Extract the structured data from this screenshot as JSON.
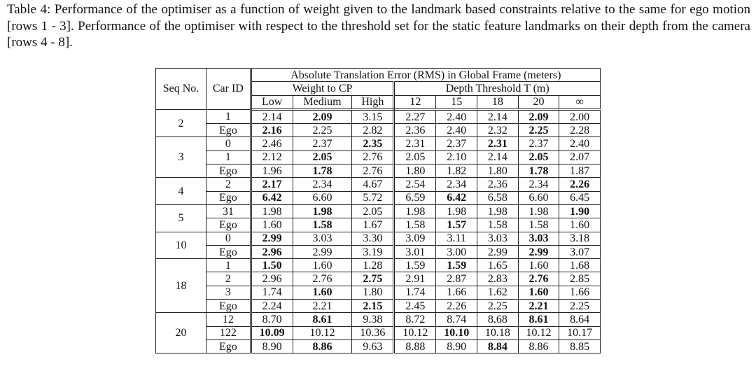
{
  "caption": "Table 4: Performance of the optimiser as a function of weight given to the landmark based constraints relative to the same for ego motion [rows 1 - 3]. Performance of the optimiser with respect to the threshold set for the static feature landmarks on their depth from the camera [rows 4 - 8].",
  "table": {
    "header": {
      "seq": "Seq No.",
      "car": "Car ID",
      "group": "Absolute Translation Error (RMS) in Global Frame (meters)",
      "weight": "Weight to CP",
      "depth": "Depth Threshold T (m)",
      "weight_cols": [
        "Low",
        "Medium",
        "High"
      ],
      "depth_cols": [
        "12",
        "15",
        "18",
        "20",
        "∞"
      ]
    },
    "groups": [
      {
        "seq": "2",
        "rows": [
          {
            "car": "1",
            "values": [
              "2.14",
              "2.09",
              "3.15",
              "2.27",
              "2.40",
              "2.14",
              "2.09",
              "2.00"
            ],
            "bold": [
              1,
              6
            ]
          },
          {
            "car": "Ego",
            "values": [
              "2.16",
              "2.25",
              "2.82",
              "2.36",
              "2.40",
              "2.32",
              "2.25",
              "2.28"
            ],
            "bold": [
              0,
              6
            ]
          }
        ]
      },
      {
        "seq": "3",
        "rows": [
          {
            "car": "0",
            "values": [
              "2.46",
              "2.37",
              "2.35",
              "2.31",
              "2.37",
              "2.31",
              "2.37",
              "2.40"
            ],
            "bold": [
              2,
              5
            ]
          },
          {
            "car": "1",
            "values": [
              "2.12",
              "2.05",
              "2.76",
              "2.05",
              "2.10",
              "2.14",
              "2.05",
              "2.07"
            ],
            "bold": [
              1,
              6
            ]
          },
          {
            "car": "Ego",
            "values": [
              "1.96",
              "1.78",
              "2.76",
              "1.80",
              "1.82",
              "1.80",
              "1.78",
              "1.87"
            ],
            "bold": [
              1,
              6
            ]
          }
        ]
      },
      {
        "seq": "4",
        "rows": [
          {
            "car": "2",
            "values": [
              "2.17",
              "2.34",
              "4.67",
              "2.54",
              "2.34",
              "2.36",
              "2.34",
              "2.26"
            ],
            "bold": [
              0,
              7
            ]
          },
          {
            "car": "Ego",
            "values": [
              "6.42",
              "6.60",
              "5.72",
              "6.59",
              "6.42",
              "6.58",
              "6.60",
              "6.45"
            ],
            "bold": [
              0,
              4
            ]
          }
        ]
      },
      {
        "seq": "5",
        "rows": [
          {
            "car": "31",
            "values": [
              "1.98",
              "1.98",
              "2.05",
              "1.98",
              "1.98",
              "1.98",
              "1.98",
              "1.90"
            ],
            "bold": [
              1,
              7
            ]
          },
          {
            "car": "Ego",
            "values": [
              "1.60",
              "1.58",
              "1.67",
              "1.58",
              "1.57",
              "1.58",
              "1.58",
              "1.60"
            ],
            "bold": [
              1,
              4
            ]
          }
        ]
      },
      {
        "seq": "10",
        "rows": [
          {
            "car": "0",
            "values": [
              "2.99",
              "3.03",
              "3.30",
              "3.09",
              "3.11",
              "3.03",
              "3.03",
              "3.18"
            ],
            "bold": [
              0,
              6
            ]
          },
          {
            "car": "Ego",
            "values": [
              "2.96",
              "2.99",
              "3.19",
              "3.01",
              "3.00",
              "2.99",
              "2.99",
              "3.07"
            ],
            "bold": [
              0,
              6
            ]
          }
        ]
      },
      {
        "seq": "18",
        "rows": [
          {
            "car": "1",
            "values": [
              "1.50",
              "1.60",
              "1.28",
              "1.59",
              "1.59",
              "1.65",
              "1.60",
              "1.68"
            ],
            "bold": [
              0,
              4
            ]
          },
          {
            "car": "2",
            "values": [
              "2.96",
              "2.76",
              "2.75",
              "2.91",
              "2.87",
              "2.83",
              "2.76",
              "2.85"
            ],
            "bold": [
              2,
              6
            ]
          },
          {
            "car": "3",
            "values": [
              "1.74",
              "1.60",
              "1.80",
              "1.74",
              "1.66",
              "1.62",
              "1.60",
              "1.66"
            ],
            "bold": [
              1,
              6
            ]
          },
          {
            "car": "Ego",
            "values": [
              "2.24",
              "2.21",
              "2.15",
              "2.45",
              "2.26",
              "2.25",
              "2.21",
              "2.25"
            ],
            "bold": [
              2,
              6
            ]
          }
        ]
      },
      {
        "seq": "20",
        "rows": [
          {
            "car": "12",
            "values": [
              "8.70",
              "8.61",
              "9.38",
              "8.72",
              "8.74",
              "8.68",
              "8.61",
              "8.64"
            ],
            "bold": [
              1,
              6
            ]
          },
          {
            "car": "122",
            "values": [
              "10.09",
              "10.12",
              "10.36",
              "10.12",
              "10.10",
              "10.18",
              "10.12",
              "10.17"
            ],
            "bold": [
              0,
              4
            ]
          },
          {
            "car": "Ego",
            "values": [
              "8.90",
              "8.86",
              "9.63",
              "8.88",
              "8.90",
              "8.84",
              "8.86",
              "8.85"
            ],
            "bold": [
              1,
              5
            ]
          }
        ]
      }
    ]
  }
}
